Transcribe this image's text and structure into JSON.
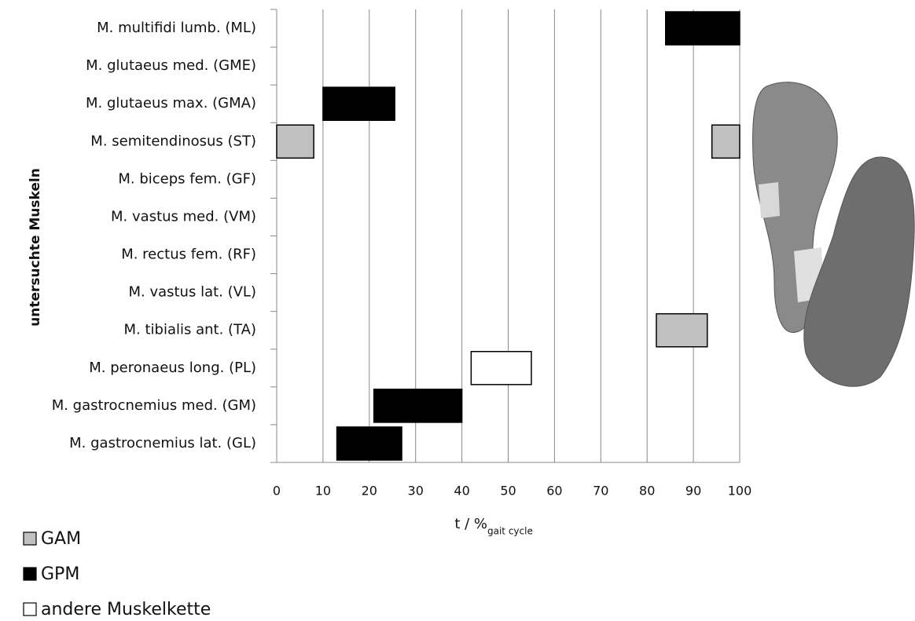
{
  "chart_data": {
    "type": "floating-bar",
    "ylabel": "untersuchte Muskeln",
    "xlabel": {
      "text": "t / %",
      "subscript": "gait cycle"
    },
    "categories": [
      "M. multifidi lumb. (ML)",
      "M. glutaeus med. (GME)",
      "M. glutaeus max. (GMA)",
      "M. semitendinosus (ST)",
      "M. biceps fem. (GF)",
      "M. vastus med. (VM)",
      "M. rectus fem. (RF)",
      "M. vastus lat. (VL)",
      "M. tibialis ant. (TA)",
      "M. peronaeus long. (PL)",
      "M. gastrocnemius med. (GM)",
      "M. gastrocnemius lat. (GL)"
    ],
    "series": [
      {
        "name": "GAM",
        "color": "#c0c0c0",
        "intervals": [
          {
            "category": "M. semitendinosus (ST)",
            "start": 0,
            "end": 8
          },
          {
            "category": "M. semitendinosus (ST)",
            "start": 94,
            "end": 100
          },
          {
            "category": "M. tibialis ant. (TA)",
            "start": 82,
            "end": 93
          }
        ]
      },
      {
        "name": "GPM",
        "color": "#000000",
        "intervals": [
          {
            "category": "M. multifidi lumb. (ML)",
            "start": 84,
            "end": 100
          },
          {
            "category": "M. glutaeus max. (GMA)",
            "start": 10,
            "end": 25.5
          },
          {
            "category": "M. gastrocnemius med. (GM)",
            "start": 21,
            "end": 40
          },
          {
            "category": "M. gastrocnemius lat. (GL)",
            "start": 13,
            "end": 27
          }
        ]
      },
      {
        "name": "andere Muskelkette",
        "color": "#ffffff",
        "intervals": [
          {
            "category": "M. peronaeus long. (PL)",
            "start": 42,
            "end": 55
          }
        ]
      }
    ],
    "xlim": [
      0,
      100
    ],
    "xticks": [
      0,
      10,
      20,
      30,
      40,
      50,
      60,
      70,
      80,
      90,
      100
    ],
    "grid": true
  }
}
